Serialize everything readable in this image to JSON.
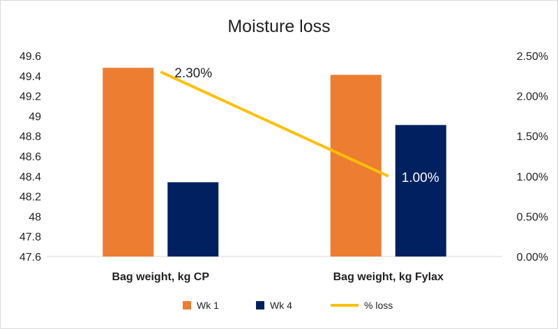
{
  "chart_data": {
    "type": "bar+line",
    "title": "Moisture loss",
    "categories": [
      "Bag weight, kg CP",
      "Bag weight, kg Fylax"
    ],
    "series": [
      {
        "name": "Wk 1",
        "type": "bar",
        "axis": "left",
        "color": "#ED7D31",
        "values": [
          49.48,
          49.41
        ]
      },
      {
        "name": "Wk 4",
        "type": "bar",
        "axis": "left",
        "color": "#002060",
        "values": [
          48.34,
          48.91
        ]
      },
      {
        "name": "% loss",
        "type": "line",
        "axis": "right",
        "color": "#FFC000",
        "values": [
          0.023,
          0.01
        ],
        "data_labels": [
          "2.30%",
          "1.00%"
        ]
      }
    ],
    "y_left": {
      "min": 47.6,
      "max": 49.6,
      "ticks": [
        "47.6",
        "47.8",
        "48",
        "48.2",
        "48.4",
        "48.6",
        "48.8",
        "49",
        "49.2",
        "49.4",
        "49.6"
      ]
    },
    "y_right": {
      "min": 0,
      "max": 0.025,
      "ticks": [
        "0.00%",
        "0.50%",
        "1.00%",
        "1.50%",
        "2.00%",
        "2.50%"
      ]
    },
    "grid": false,
    "legend": "bottom"
  }
}
